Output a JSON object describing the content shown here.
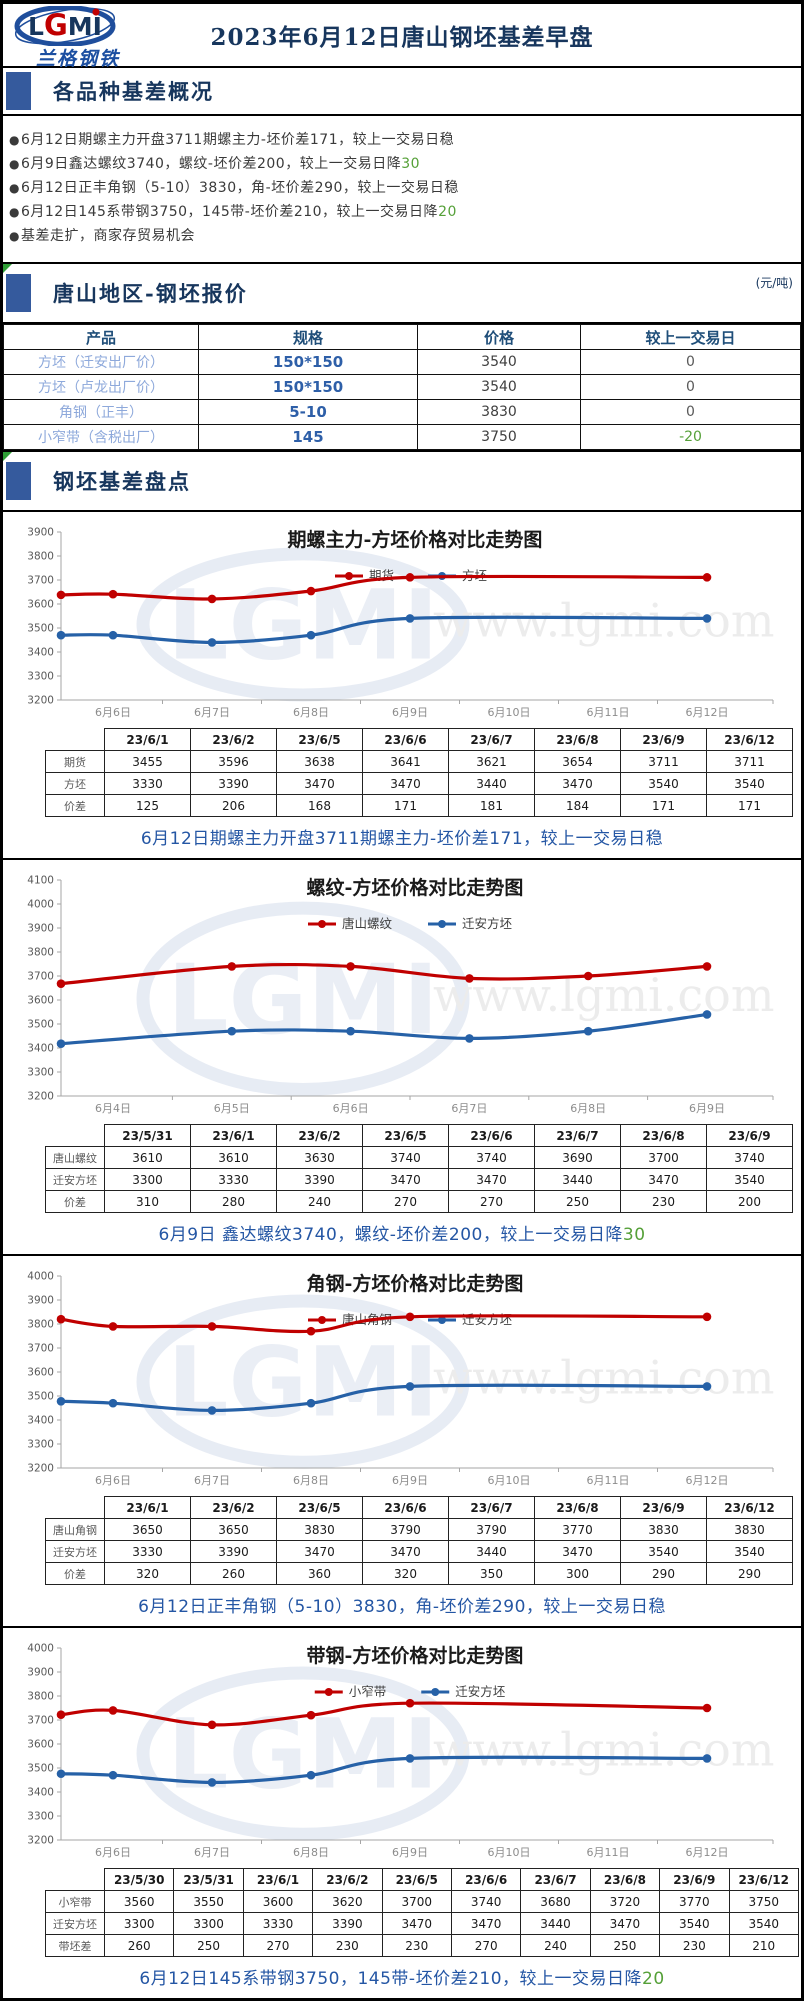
{
  "header": {
    "logo_text": "LGMI",
    "logo_letters": [
      "L",
      "G",
      "M",
      "I"
    ],
    "logo_sub": "兰格钢铁",
    "title": "2023年6月12日唐山钢坯基差早盘"
  },
  "sections": {
    "overview": "各品种基差概况",
    "quotes": "唐山地区-钢坯报价",
    "quotes_unit": "(元/吨)",
    "basis": "钢坯基差盘点"
  },
  "bullets": [
    {
      "text": "6月12日期螺主力开盘3711期螺主力-坯价差171，较上一交易日稳",
      "suffix": ""
    },
    {
      "text": "6月9日鑫达螺纹3740，螺纹-坯价差200，较上一交易日降",
      "suffix": "30"
    },
    {
      "text": "6月12日正丰角钢（5-10）3830，角-坯价差290，较上一交易日稳",
      "suffix": ""
    },
    {
      "text": "6月12日145系带钢3750，145带-坯价差210，较上一交易日降",
      "suffix": "20"
    },
    {
      "text": "基差走扩，商家存贸易机会",
      "suffix": ""
    }
  ],
  "price_table": {
    "headers": [
      "产品",
      "规格",
      "价格",
      "较上一交易日"
    ],
    "rows": [
      {
        "product": "方坯（迁安出厂价）",
        "spec": "150*150",
        "price": "3540",
        "change": "0"
      },
      {
        "product": "方坯（卢龙出厂价）",
        "spec": "150*150",
        "price": "3540",
        "change": "0"
      },
      {
        "product": "角钢（正丰）",
        "spec": "5-10",
        "price": "3830",
        "change": "0"
      },
      {
        "product": "小窄带（含税出厂）",
        "spec": "145",
        "price": "3750",
        "change": "-20"
      }
    ]
  },
  "watermark": {
    "logo": "LGMI",
    "url": "www.lgmi.com"
  },
  "colors": {
    "navy": "#17365d",
    "section_blue": "#355a9d",
    "caption_blue": "#2456a4",
    "green": "#55a038",
    "chart_red": "#c00000",
    "chart_blue": "#2661a7"
  },
  "chart_data": [
    {
      "type": "line",
      "title": "期螺主力-方坯价格对比走势图",
      "ylim": [
        3200,
        3900
      ],
      "ystep": 100,
      "grid": false,
      "legend_position": "top",
      "x_labels": [
        "6月6日",
        "6月7日",
        "6月8日",
        "6月9日",
        "6月10日",
        "6月11日",
        "6月12日"
      ],
      "series": [
        {
          "name": "期货",
          "color": "#c00000",
          "edge": 3638,
          "values": [
            3641,
            3621,
            3654,
            3711,
            null,
            null,
            3711
          ]
        },
        {
          "name": "方坯",
          "color": "#2661a7",
          "edge": 3470,
          "values": [
            3470,
            3440,
            3470,
            3540,
            null,
            null,
            3540
          ]
        }
      ],
      "table": {
        "dates": [
          "23/6/1",
          "23/6/2",
          "23/6/5",
          "23/6/6",
          "23/6/7",
          "23/6/8",
          "23/6/9",
          "23/6/12"
        ],
        "rows": [
          {
            "label": "期货",
            "cells": [
              3455,
              3596,
              3638,
              3641,
              3621,
              3654,
              3711,
              3711
            ]
          },
          {
            "label": "方坯",
            "cells": [
              3330,
              3390,
              3470,
              3470,
              3440,
              3470,
              3540,
              3540
            ]
          },
          {
            "label": "价差",
            "cells": [
              125,
              206,
              168,
              171,
              181,
              184,
              171,
              171
            ]
          }
        ]
      },
      "caption": {
        "text": "6月12日期螺主力开盘3711期螺主力-坯价差171，较上一交易日稳",
        "suffix": ""
      }
    },
    {
      "type": "line",
      "title": "螺纹-方坯价格对比走势图",
      "ylim": [
        3200,
        4100
      ],
      "ystep": 100,
      "grid": false,
      "legend_position": "top",
      "x_labels": [
        "6月4日",
        "6月5日",
        "6月6日",
        "6月7日",
        "6月8日",
        "6月9日"
      ],
      "series": [
        {
          "name": "唐山螺纹",
          "color": "#c00000",
          "edge": 3668,
          "values": [
            null,
            3740,
            3740,
            3690,
            3700,
            3740
          ]
        },
        {
          "name": "迁安方坯",
          "color": "#2661a7",
          "edge": 3418,
          "values": [
            null,
            3470,
            3470,
            3440,
            3470,
            3540
          ]
        }
      ],
      "table": {
        "dates": [
          "23/5/31",
          "23/6/1",
          "23/6/2",
          "23/6/5",
          "23/6/6",
          "23/6/7",
          "23/6/8",
          "23/6/9"
        ],
        "rows": [
          {
            "label": "唐山螺纹",
            "cells": [
              3610,
              3610,
              3630,
              3740,
              3740,
              3690,
              3700,
              3740
            ]
          },
          {
            "label": "迁安方坯",
            "cells": [
              3300,
              3330,
              3390,
              3470,
              3470,
              3440,
              3470,
              3540
            ]
          },
          {
            "label": "价差",
            "cells": [
              310,
              280,
              240,
              270,
              270,
              250,
              230,
              200
            ]
          }
        ]
      },
      "caption": {
        "text": "6月9日 鑫达螺纹3740，螺纹-坯价差200，较上一交易日降",
        "suffix": "30"
      }
    },
    {
      "type": "line",
      "title": "角钢-方坯价格对比走势图",
      "ylim": [
        3200,
        4000
      ],
      "ystep": 100,
      "grid": false,
      "legend_position": "top",
      "x_labels": [
        "6月6日",
        "6月7日",
        "6月8日",
        "6月9日",
        "6月10日",
        "6月11日",
        "6月12日"
      ],
      "series": [
        {
          "name": "唐山角钢",
          "color": "#c00000",
          "edge": 3820,
          "values": [
            3790,
            3790,
            3770,
            3830,
            null,
            null,
            3830
          ]
        },
        {
          "name": "迁安方坯",
          "color": "#2661a7",
          "edge": 3478,
          "values": [
            3470,
            3440,
            3470,
            3540,
            null,
            null,
            3540
          ]
        }
      ],
      "table": {
        "dates": [
          "23/6/1",
          "23/6/2",
          "23/6/5",
          "23/6/6",
          "23/6/7",
          "23/6/8",
          "23/6/9",
          "23/6/12"
        ],
        "rows": [
          {
            "label": "唐山角钢",
            "cells": [
              3650,
              3650,
              3830,
              3790,
              3790,
              3770,
              3830,
              3830
            ]
          },
          {
            "label": "迁安方坯",
            "cells": [
              3330,
              3390,
              3470,
              3470,
              3440,
              3470,
              3540,
              3540
            ]
          },
          {
            "label": "价差",
            "cells": [
              320,
              260,
              360,
              320,
              350,
              300,
              290,
              290
            ]
          }
        ]
      },
      "caption": {
        "text": "6月12日正丰角钢（5-10）3830，角-坯价差290，较上一交易日稳",
        "suffix": ""
      }
    },
    {
      "type": "line",
      "title": "带钢-方坯价格对比走势图",
      "ylim": [
        3200,
        4000
      ],
      "ystep": 100,
      "grid": false,
      "legend_position": "top",
      "x_labels": [
        "6月6日",
        "6月7日",
        "6月8日",
        "6月9日",
        "6月10日",
        "6月11日",
        "6月12日"
      ],
      "series": [
        {
          "name": "小窄带",
          "color": "#c00000",
          "edge": 3722,
          "values": [
            3740,
            3680,
            3720,
            3770,
            null,
            null,
            3750
          ]
        },
        {
          "name": "迁安方坯",
          "color": "#2661a7",
          "edge": 3476,
          "values": [
            3470,
            3440,
            3470,
            3540,
            null,
            null,
            3540
          ]
        }
      ],
      "table": {
        "dates": [
          "23/5/30",
          "23/5/31",
          "23/6/1",
          "23/6/2",
          "23/6/5",
          "23/6/6",
          "23/6/7",
          "23/6/8",
          "23/6/9",
          "23/6/12"
        ],
        "rows": [
          {
            "label": "小窄带",
            "cells": [
              3560,
              3550,
              3600,
              3620,
              3700,
              3740,
              3680,
              3720,
              3770,
              3750
            ]
          },
          {
            "label": "迁安方坯",
            "cells": [
              3300,
              3300,
              3330,
              3390,
              3470,
              3470,
              3440,
              3470,
              3540,
              3540
            ]
          },
          {
            "label": "带坯差",
            "cells": [
              260,
              250,
              270,
              230,
              230,
              270,
              240,
              250,
              230,
              210
            ]
          }
        ]
      },
      "caption": {
        "text": "6月12日145系带钢3750，145带-坯价差210，较上一交易日降",
        "suffix": "20"
      }
    }
  ]
}
